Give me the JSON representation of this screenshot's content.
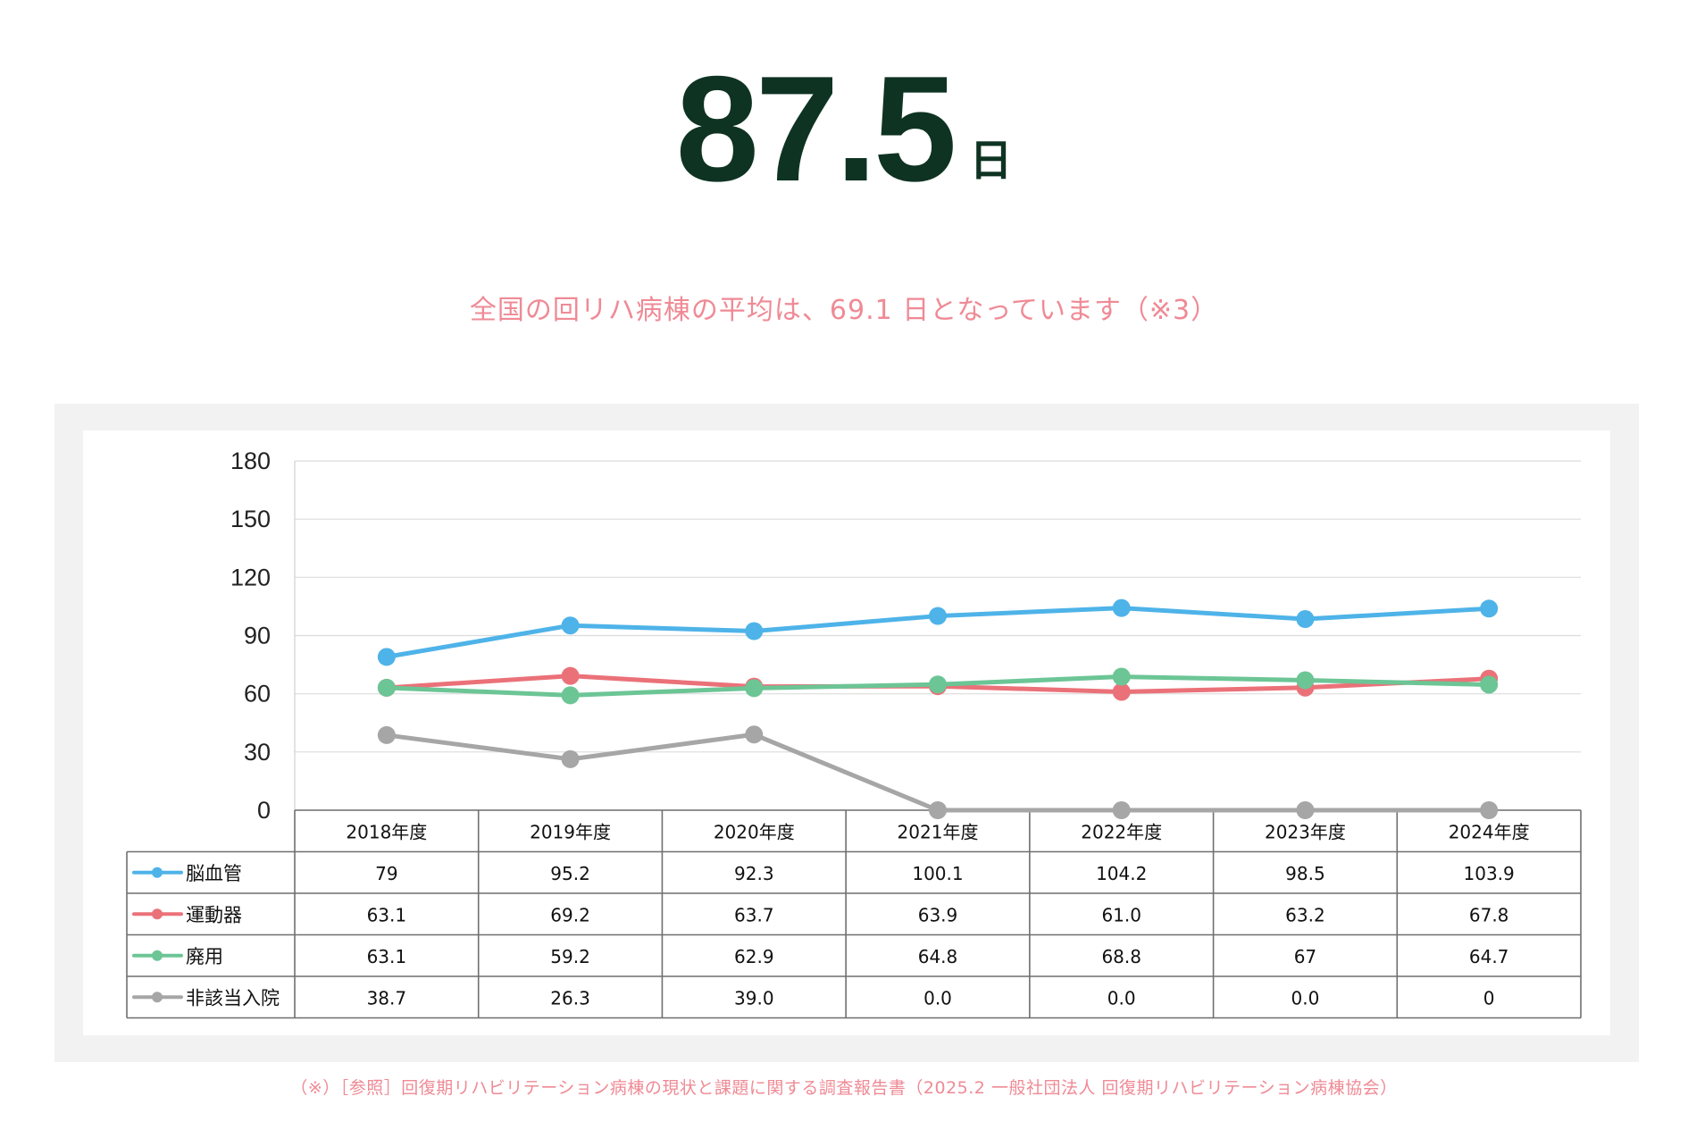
{
  "headline": {
    "value": "87.5",
    "unit": "日"
  },
  "note": "全国の回リハ病棟の平均は、69.1 日となっています（※3）",
  "footnote": "（※）［参照］回復期リハビリテーション病棟の現状と課題に関する調査報告書（2025.2 一般社団法人 回復期リハビリテーション病棟協会）",
  "chart_data": {
    "type": "line",
    "categories": [
      "2018年度",
      "2019年度",
      "2020年度",
      "2021年度",
      "2022年度",
      "2023年度",
      "2024年度"
    ],
    "ylim": [
      0,
      180
    ],
    "yticks": [
      "0",
      "30",
      "60",
      "90",
      "120",
      "150",
      "180"
    ],
    "grid": true,
    "legend": "data-table",
    "series": [
      {
        "name": "脳血管",
        "color": "#4eb3e8",
        "values": [
          79,
          95.2,
          92.3,
          100.1,
          104.2,
          98.5,
          103.9
        ],
        "labels": [
          "79",
          "95.2",
          "92.3",
          "100.1",
          "104.2",
          "98.5",
          "103.9"
        ]
      },
      {
        "name": "運動器",
        "color": "#eb7179",
        "values": [
          63.1,
          69.2,
          63.7,
          63.9,
          61.0,
          63.2,
          67.8
        ],
        "labels": [
          "63.1",
          "69.2",
          "63.7",
          "63.9",
          "61.0",
          "63.2",
          "67.8"
        ]
      },
      {
        "name": "廃用",
        "color": "#6cc595",
        "values": [
          63.1,
          59.2,
          62.9,
          64.8,
          68.8,
          67,
          64.7
        ],
        "labels": [
          "63.1",
          "59.2",
          "62.9",
          "64.8",
          "68.8",
          "67",
          "64.7"
        ]
      },
      {
        "name": "非該当入院",
        "color": "#a6a6a6",
        "values": [
          38.7,
          26.3,
          39.0,
          0.0,
          0.0,
          0.0,
          0
        ],
        "labels": [
          "38.7",
          "26.3",
          "39.0",
          "0.0",
          "0.0",
          "0.0",
          "0"
        ]
      }
    ]
  }
}
